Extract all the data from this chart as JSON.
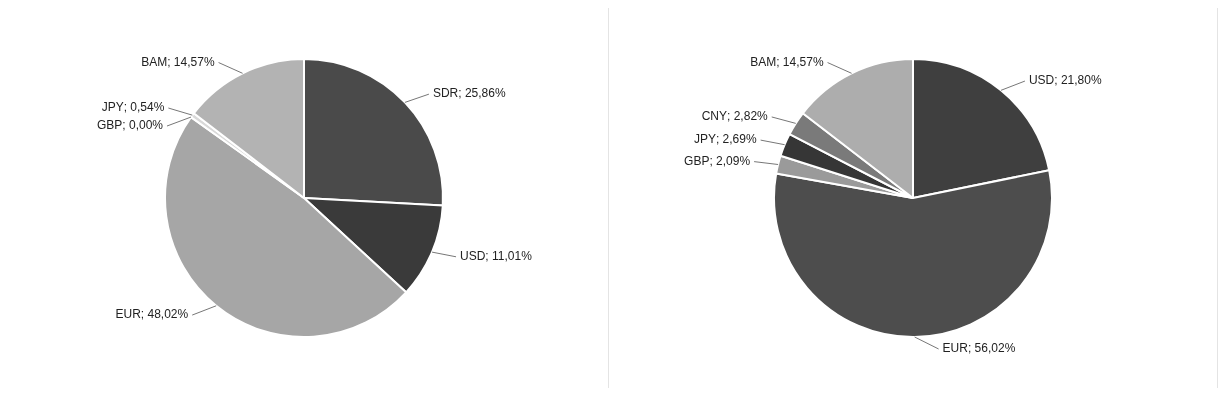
{
  "chart_data": [
    {
      "type": "pie",
      "categories": [
        "SDR",
        "USD",
        "EUR",
        "GBP",
        "JPY",
        "BAM"
      ],
      "values": [
        25.86,
        11.01,
        48.02,
        0.0,
        0.54,
        14.57
      ],
      "colors": [
        "#4a4a4a",
        "#3a3a3a",
        "#a6a6a6",
        "#8c8c8c",
        "#d9d9d9",
        "#b3b3b3"
      ],
      "value_labels": [
        "; 25,86%",
        "; 11,01%",
        "; 48,02%",
        "; 0,00%",
        "; 0,54%",
        "; 14,57%"
      ]
    },
    {
      "type": "pie",
      "categories": [
        "USD",
        "EUR",
        "GBP",
        "JPY",
        "CNY",
        "BAM"
      ],
      "values": [
        21.8,
        56.02,
        2.09,
        2.69,
        2.82,
        14.57
      ],
      "colors": [
        "#3f3f3f",
        "#4d4d4d",
        "#9a9a9a",
        "#363636",
        "#7a7a7a",
        "#adadad"
      ],
      "value_labels": [
        "; 21,80%",
        "; 56,02%",
        "; 2,09%",
        "; 2,69%",
        "; 2,82%",
        "; 14,57%"
      ]
    }
  ]
}
